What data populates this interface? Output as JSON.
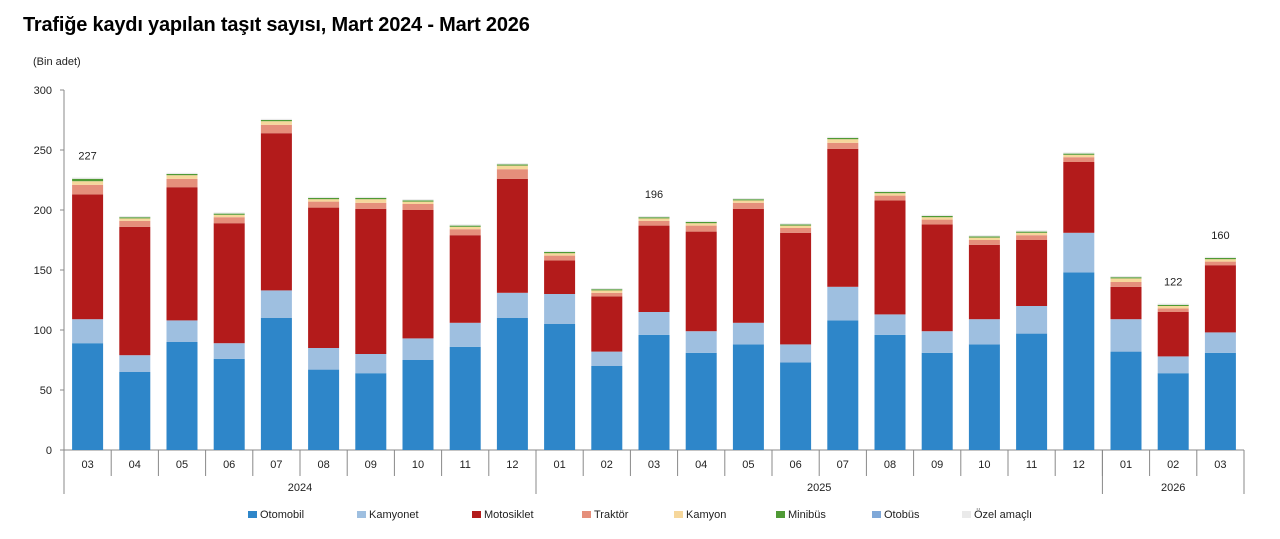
{
  "title": "Trafiğe kaydı yapılan taşıt sayısı, Mart 2024 - Mart 2026",
  "unit_label": "(Bin adet)",
  "chart_data": {
    "type": "bar",
    "stacked": true,
    "title": "Trafiğe kaydı yapılan taşıt sayısı, Mart 2024 - Mart 2026",
    "ylabel": "(Bin adet)",
    "xlabel": "",
    "ylim": [
      0,
      300
    ],
    "yticks": [
      0,
      50,
      100,
      150,
      200,
      250,
      300
    ],
    "grid": false,
    "legend_position": "bottom",
    "categories": [
      "03",
      "04",
      "05",
      "06",
      "07",
      "08",
      "09",
      "10",
      "11",
      "12",
      "01",
      "02",
      "03",
      "04",
      "05",
      "06",
      "07",
      "08",
      "09",
      "10",
      "11",
      "12",
      "01",
      "02",
      "03"
    ],
    "year_groups": [
      {
        "label": "2024",
        "start": 0,
        "end": 9
      },
      {
        "label": "2025",
        "start": 10,
        "end": 21
      },
      {
        "label": "2026",
        "start": 22,
        "end": 24
      }
    ],
    "series": [
      {
        "name": "Otomobil",
        "color": "#2e86c9",
        "values": [
          89,
          65,
          90,
          76,
          110,
          67,
          64,
          75,
          86,
          110,
          105,
          70,
          96,
          81,
          88,
          73,
          108,
          96,
          81,
          88,
          97,
          148,
          82,
          64,
          81
        ]
      },
      {
        "name": "Kamyonet",
        "color": "#9ebfe0",
        "values": [
          20,
          14,
          18,
          13,
          23,
          18,
          16,
          18,
          20,
          21,
          25,
          12,
          19,
          18,
          18,
          15,
          28,
          17,
          18,
          21,
          23,
          33,
          27,
          14,
          17
        ]
      },
      {
        "name": "Motosiklet",
        "color": "#b31b1b",
        "values": [
          104,
          107,
          111,
          100,
          131,
          117,
          121,
          107,
          73,
          95,
          28,
          46,
          72,
          83,
          95,
          93,
          115,
          95,
          89,
          62,
          55,
          59,
          27,
          37,
          56
        ]
      },
      {
        "name": "Traktör",
        "color": "#e58f7b",
        "values": [
          8,
          5,
          7,
          5,
          7,
          5,
          5,
          5,
          5,
          8,
          4,
          3,
          4,
          5,
          5,
          4,
          5,
          4,
          4,
          4,
          4,
          4,
          4,
          3,
          3
        ]
      },
      {
        "name": "Kamyon",
        "color": "#f6d79b",
        "values": [
          3,
          2,
          3,
          2,
          3,
          2,
          3,
          2,
          2,
          3,
          2,
          2,
          2,
          2,
          2,
          2,
          3,
          2,
          2,
          2,
          2,
          2,
          3,
          2,
          2
        ]
      },
      {
        "name": "Minibüs",
        "color": "#4f9a35",
        "values": [
          2,
          1,
          1,
          1,
          1,
          1,
          1,
          1,
          1,
          1,
          1,
          1,
          1,
          1,
          1,
          1,
          1,
          1,
          1,
          1,
          1,
          1,
          1,
          1,
          1
        ]
      },
      {
        "name": "Otobüs",
        "color": "#7fa8d8",
        "values": [
          0,
          0,
          0,
          0,
          0,
          0,
          0,
          0,
          0,
          0,
          0,
          0,
          0,
          0,
          0,
          0,
          0,
          0,
          0,
          0,
          0,
          0,
          0,
          0,
          0
        ]
      },
      {
        "name": "Özel amaçlı",
        "color": "#eaeaea",
        "values": [
          1,
          1,
          1,
          1,
          1,
          1,
          1,
          1,
          1,
          1,
          1,
          1,
          1,
          1,
          1,
          1,
          1,
          1,
          1,
          1,
          1,
          1,
          1,
          1,
          1
        ]
      }
    ],
    "data_labels": [
      {
        "index": 0,
        "text": "227"
      },
      {
        "index": 12,
        "text": "196"
      },
      {
        "index": 23,
        "text": "122"
      },
      {
        "index": 24,
        "text": "160"
      }
    ]
  }
}
